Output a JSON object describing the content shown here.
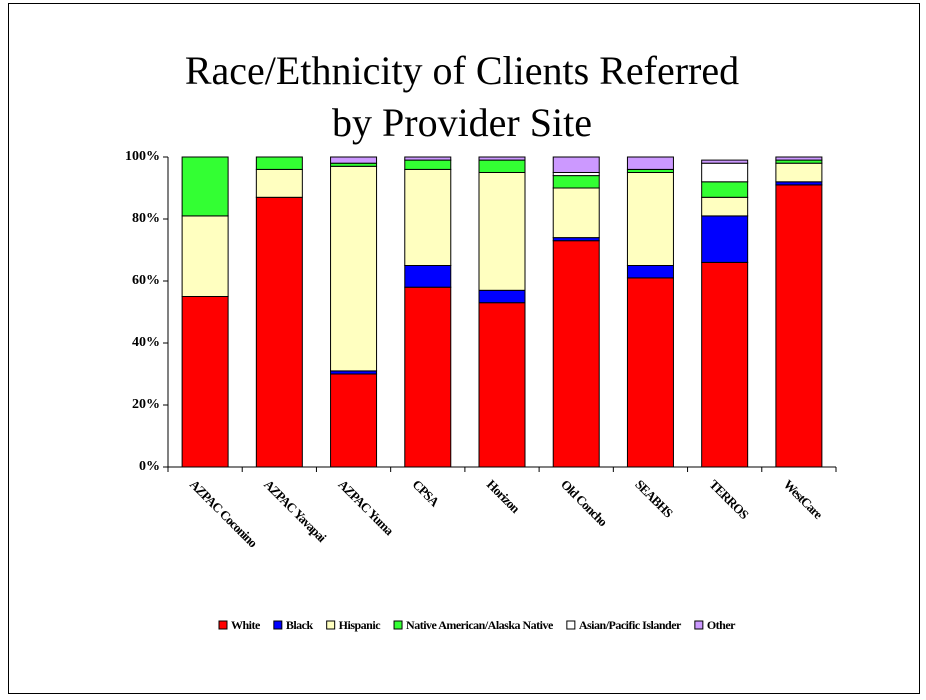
{
  "chart_data": {
    "type": "stacked_bar",
    "title": [
      "Race/Ethnicity of Clients Referred",
      "by Provider Site"
    ],
    "categories": [
      "AZPAC Coconino",
      "AZPAC Yavapai",
      "AZPAC Yuma",
      "CPSA",
      "Horizon",
      "Old Concho",
      "SEABHS",
      "TERROS",
      "WestCare"
    ],
    "series": [
      {
        "name": "White",
        "color": "#ff0000",
        "values": [
          55,
          87,
          30,
          58,
          53,
          73,
          61,
          66,
          91
        ]
      },
      {
        "name": "Black",
        "color": "#0000ff",
        "values": [
          0,
          0,
          1,
          7,
          4,
          1,
          4,
          15,
          1
        ]
      },
      {
        "name": "Hispanic",
        "color": "#ffffc0",
        "values": [
          26,
          9,
          66,
          31,
          38,
          16,
          30,
          6,
          6
        ]
      },
      {
        "name": "Native American/Alaska Native",
        "color": "#33ff33",
        "values": [
          19,
          4,
          1,
          3,
          4,
          4,
          1,
          5,
          1
        ]
      },
      {
        "name": "Asian/Pacific Islander",
        "color": "#ffffff",
        "values": [
          0,
          0,
          0,
          0,
          0,
          1,
          0,
          6,
          0
        ]
      },
      {
        "name": "Other",
        "color": "#cc99ff",
        "values": [
          0,
          0,
          2,
          1,
          1,
          5,
          4,
          1,
          1
        ]
      }
    ],
    "ylim": [
      0,
      100
    ],
    "yticks": [
      {
        "value": 0,
        "label": "0%"
      },
      {
        "value": 20,
        "label": "20%"
      },
      {
        "value": 40,
        "label": "40%"
      },
      {
        "value": 60,
        "label": "60%"
      },
      {
        "value": 80,
        "label": "80%"
      },
      {
        "value": 100,
        "label": "100%"
      }
    ],
    "legend": "bottom"
  }
}
